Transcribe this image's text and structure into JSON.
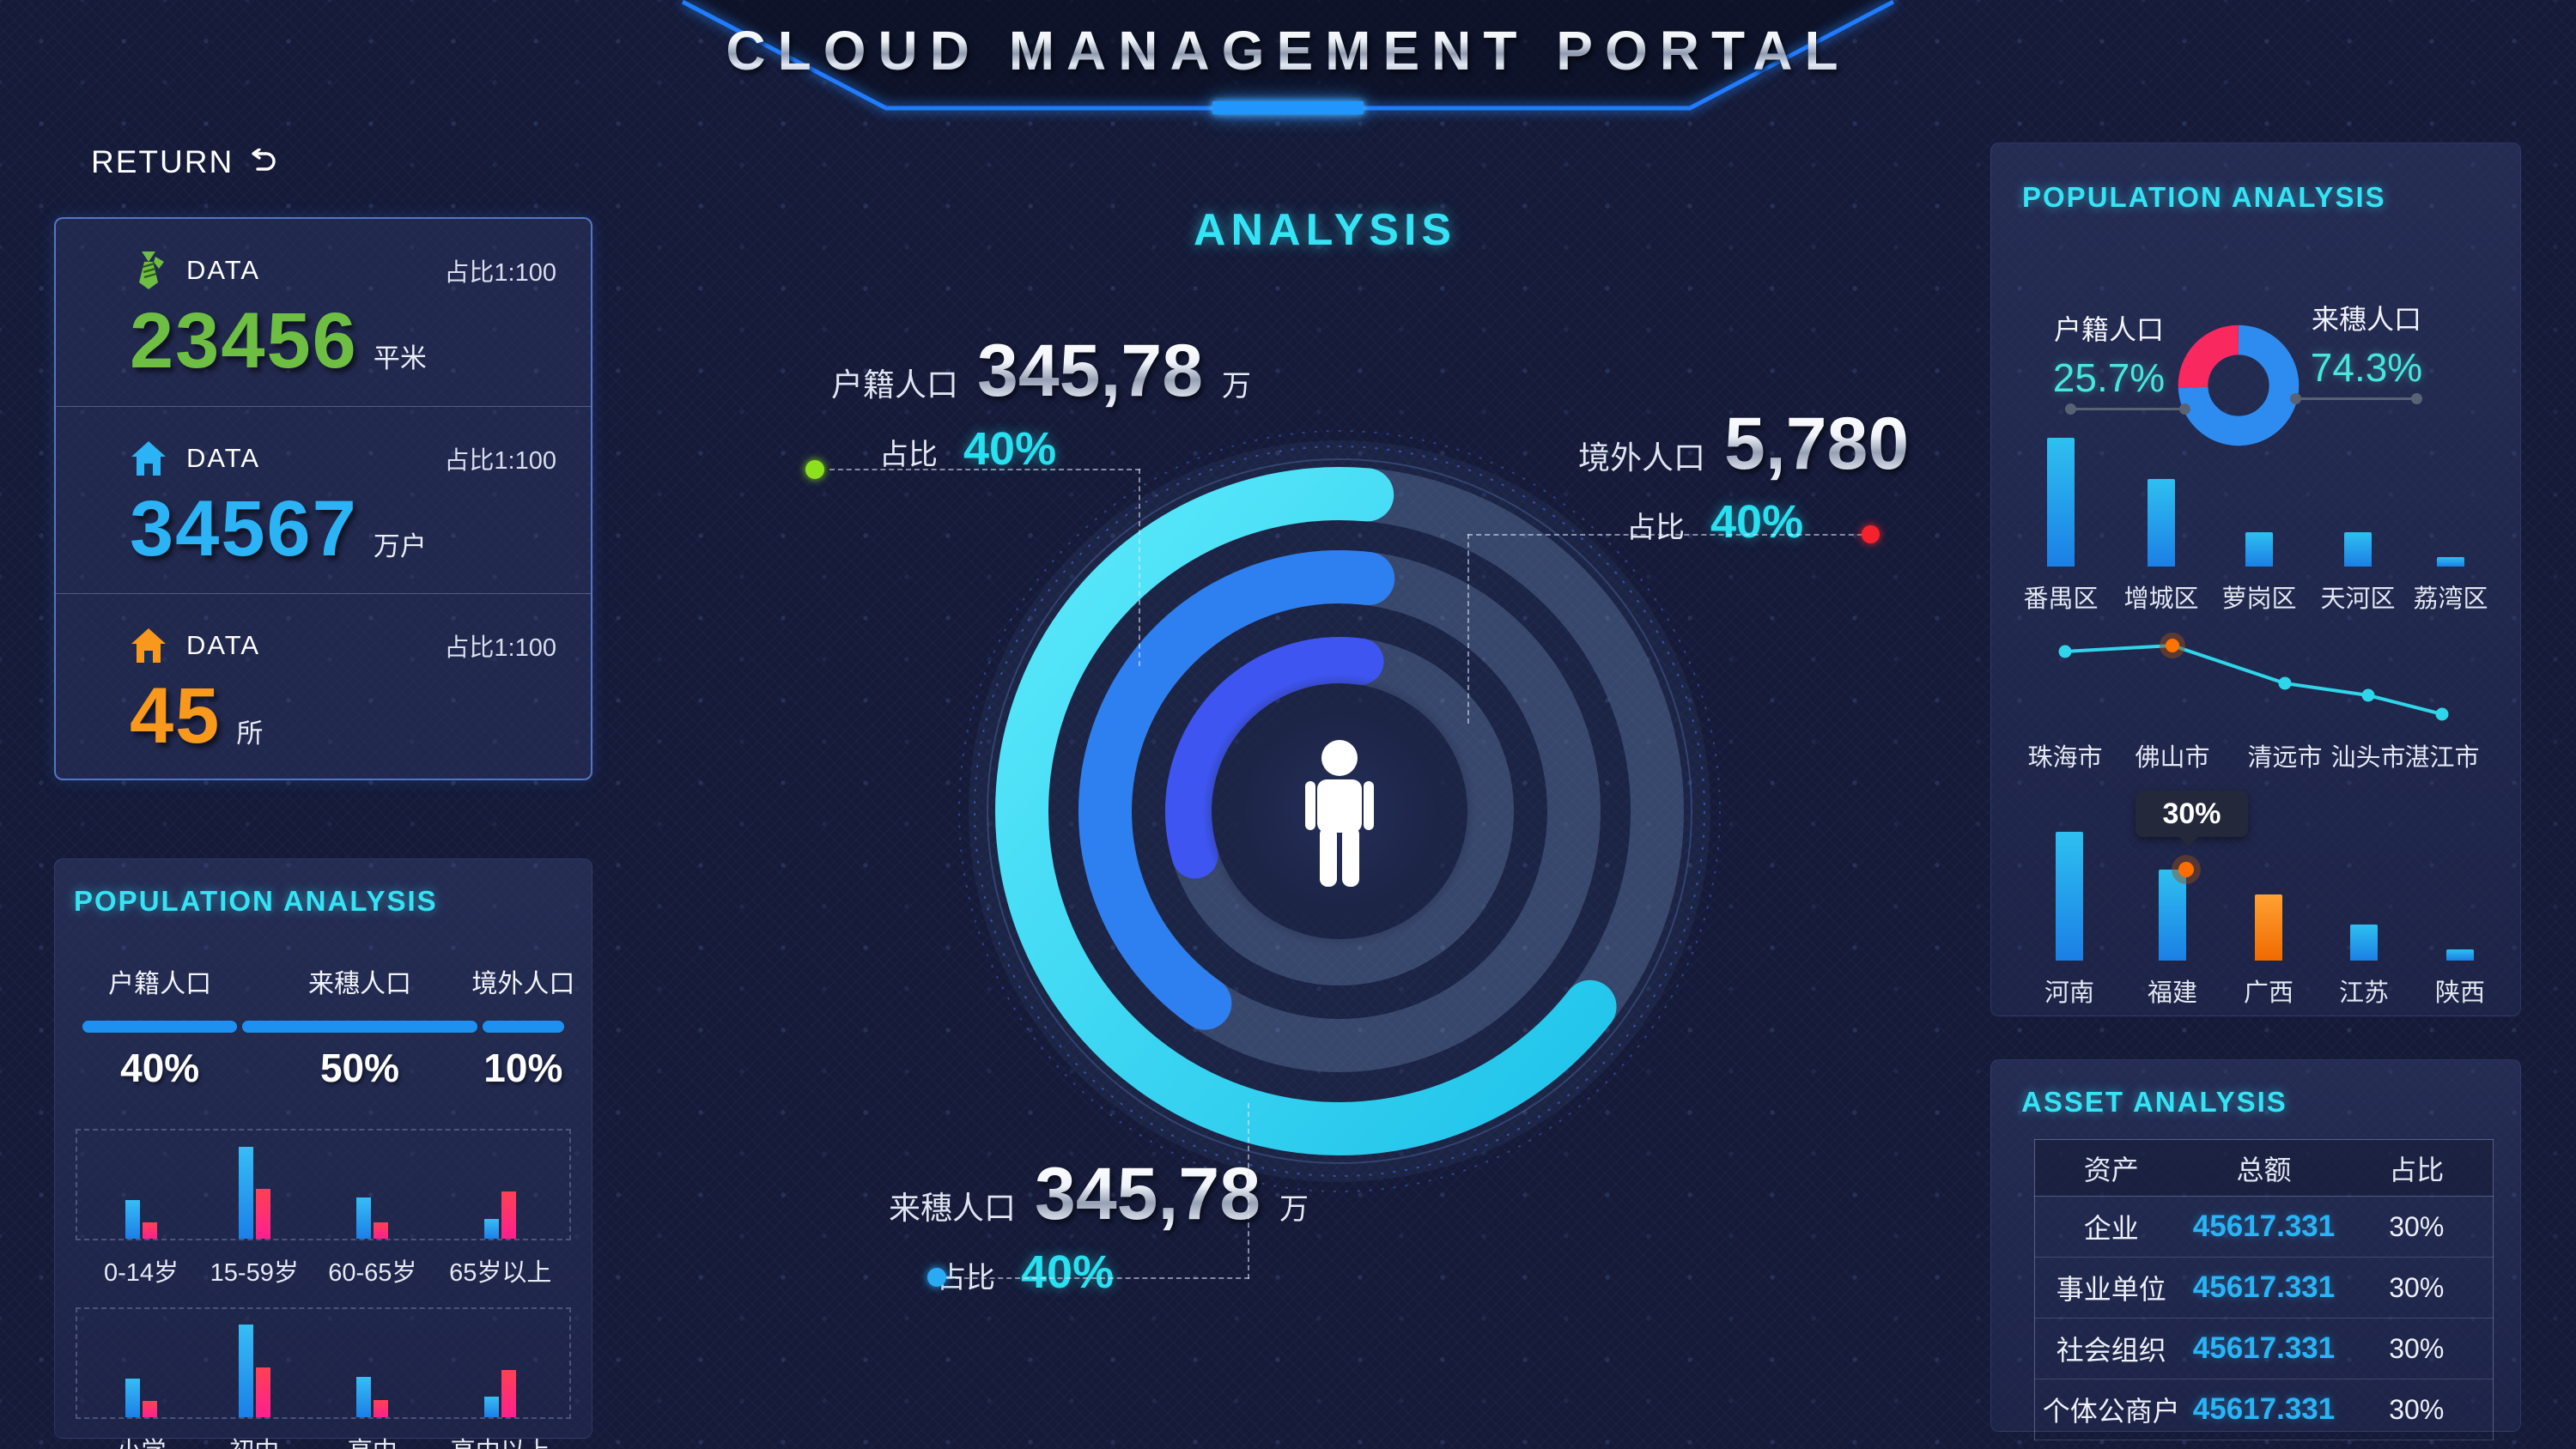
{
  "header": {
    "title": "CLOUD MANAGEMENT PORTAL"
  },
  "nav": {
    "return_label": "RETURN"
  },
  "stats_card": {
    "items": [
      {
        "icon": "tie-icon",
        "label": "DATA",
        "ratio": "占比1:100",
        "value": "23456",
        "unit": "平米",
        "color": "#6fbe44"
      },
      {
        "icon": "house-icon",
        "label": "DATA",
        "ratio": "占比1:100",
        "value": "34567",
        "unit": "万户",
        "color": "#2cb3f5"
      },
      {
        "icon": "house-icon",
        "label": "DATA",
        "ratio": "占比1:100",
        "value": "45",
        "unit": "所",
        "color": "#f8991d"
      }
    ]
  },
  "left_population": {
    "title": "POPULATION ANALYSIS",
    "bar_color": "#1e90f0",
    "segments": [
      {
        "label": "户籍人口",
        "percent": "40%",
        "width_pct": 33
      },
      {
        "label": "来穗人口",
        "percent": "50%",
        "width_pct": 50
      },
      {
        "label": "境外人口",
        "percent": "10%",
        "width_pct": 17
      }
    ],
    "age_chart": {
      "type": "bar",
      "categories": [
        "0-14岁",
        "15-59岁",
        "60-65岁",
        "65岁以上"
      ],
      "series": [
        {
          "name": "blue",
          "color_top": "#38bdf5",
          "color_bottom": "#1b7fe8",
          "values": [
            36,
            85,
            38,
            18
          ]
        },
        {
          "name": "pink",
          "color_top": "#ff4152",
          "color_bottom": "#ff1f8f",
          "values": [
            15,
            46,
            15,
            44
          ]
        }
      ]
    },
    "edu_chart": {
      "type": "bar",
      "categories": [
        "小学",
        "初中",
        "高中",
        "高中以上"
      ],
      "series": [
        {
          "name": "blue",
          "color_top": "#38bdf5",
          "color_bottom": "#1b7fe8",
          "values": [
            36,
            86,
            37,
            19
          ]
        },
        {
          "name": "pink",
          "color_top": "#ff4152",
          "color_bottom": "#ff1f8f",
          "values": [
            15,
            46,
            16,
            44
          ]
        }
      ]
    }
  },
  "center": {
    "title": "ANALYSIS",
    "rings": [
      {
        "name": "outer",
        "radius": 370,
        "width": 62,
        "start_deg": 128,
        "end_deg": 365,
        "color": "gradCyan"
      },
      {
        "name": "middle",
        "radius": 273,
        "width": 62,
        "start_deg": 215,
        "end_deg": 367,
        "color": "#2e7ff0"
      },
      {
        "name": "inner",
        "radius": 176,
        "width": 54,
        "start_deg": 253,
        "end_deg": 368,
        "color": "#3e55f2"
      }
    ],
    "callouts": [
      {
        "label": "户籍人口",
        "value": "345,78",
        "unit": "万",
        "ratio_label": "占比",
        "percent": "40%",
        "dot_color": "#8ce01e"
      },
      {
        "label": "境外人口",
        "value": "5,780",
        "unit": "",
        "ratio_label": "占比",
        "percent": "40%",
        "dot_color": "#f5222d"
      },
      {
        "label": "来穗人口",
        "value": "345,78",
        "unit": "万",
        "ratio_label": "占比",
        "percent": "40%",
        "dot_color": "#29aaf3"
      }
    ]
  },
  "right_population": {
    "title": "POPULATION ANALYSIS",
    "donut": {
      "type": "pie",
      "slices": [
        {
          "label": "户籍人口",
          "percent_label": "25.7%",
          "value": 25.7,
          "color": "#f9295f"
        },
        {
          "label": "来穗人口",
          "percent_label": "74.3%",
          "value": 74.3,
          "color": "#2e8cf0"
        }
      ]
    },
    "district_chart": {
      "type": "bar",
      "categories": [
        "番禺区",
        "增城区",
        "萝岗区",
        "天河区",
        "荔湾区"
      ],
      "values": [
        94,
        64,
        25,
        25,
        7
      ],
      "color_top": "#2ec0f0",
      "color_bottom": "#1b7fe5"
    },
    "city_chart": {
      "type": "line",
      "categories": [
        "珠海市",
        "佛山市",
        "清远市",
        "汕头市",
        "湛江市"
      ],
      "x": [
        54,
        179,
        310,
        407,
        493
      ],
      "y": [
        32,
        25,
        69,
        83,
        105
      ],
      "line_color": "#2fd5ea",
      "highlight_index": 1,
      "highlight_color": "#ff7300"
    },
    "province_chart": {
      "type": "bar",
      "categories": [
        "河南",
        "福建",
        "广西",
        "江苏",
        "陕西"
      ],
      "values": [
        94,
        66,
        48,
        26,
        8
      ],
      "colors": [
        "blue",
        "blue",
        "orange",
        "blue",
        "blue"
      ],
      "blue_top": "#2ec0f0",
      "blue_bottom": "#1b7fe5",
      "orange_top": "#ffa133",
      "orange_bottom": "#f06a00",
      "tooltip": {
        "index": 1,
        "label": "30%"
      }
    }
  },
  "asset": {
    "title": "ASSET ANALYSIS",
    "table": {
      "headers": [
        "资产",
        "总额",
        "占比"
      ],
      "rows": [
        {
          "name": "企业",
          "total": "45617.331",
          "ratio": "30%"
        },
        {
          "name": "事业单位",
          "total": "45617.331",
          "ratio": "30%"
        },
        {
          "name": "社会组织",
          "total": "45617.331",
          "ratio": "30%"
        },
        {
          "name": "个体公商户",
          "total": "45617.331",
          "ratio": "30%"
        }
      ]
    }
  },
  "colors": {
    "accent_cyan": "#35e3f5",
    "value_blue": "#2ab4f5",
    "background": "#141a38"
  }
}
